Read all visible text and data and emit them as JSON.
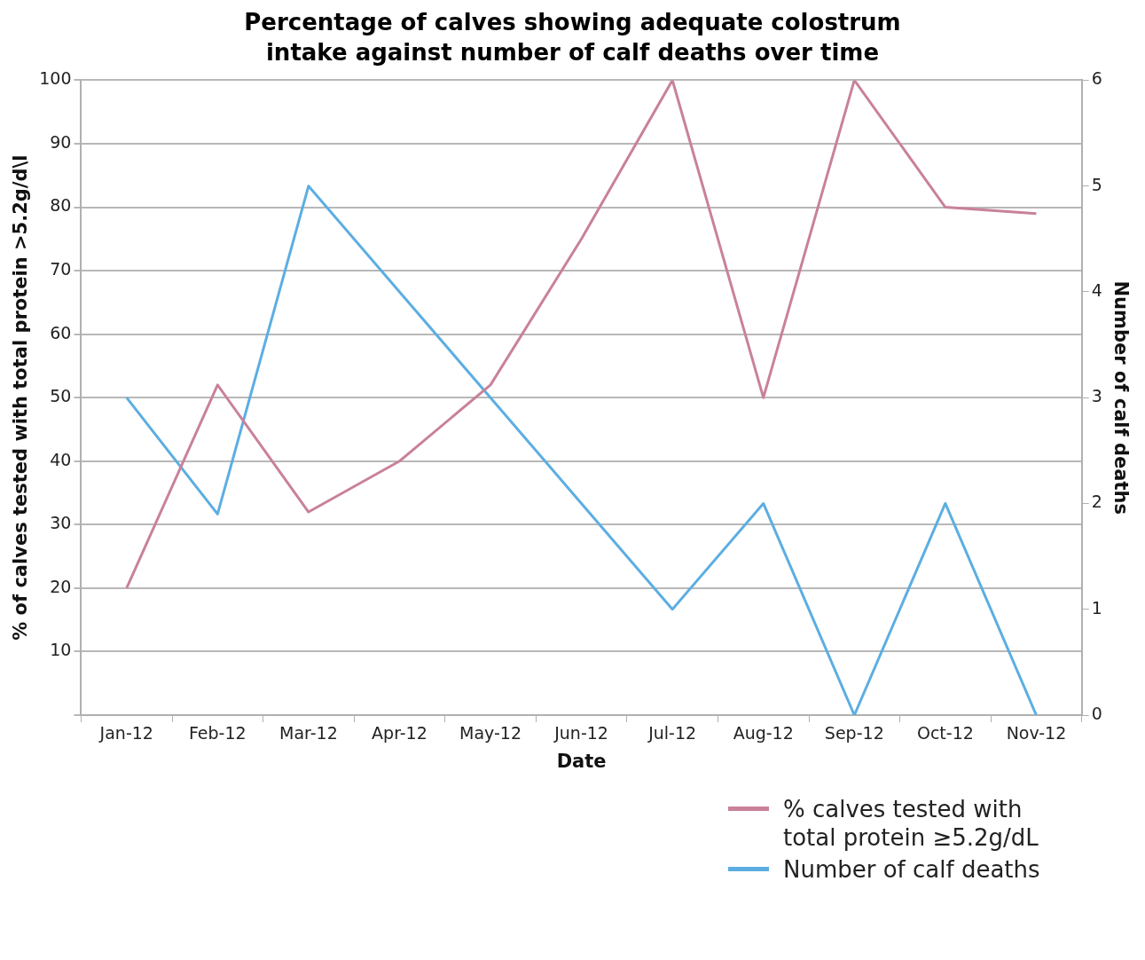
{
  "chart_data": {
    "type": "line",
    "title": "Percentage of calves showing adequate colostrum intake against number of calf deaths over time",
    "xlabel": "Date",
    "ylabel": "% of calves tested with total protein >5.2g/d\\l",
    "y2label": "Number of calf deaths",
    "categories": [
      "Jan-12",
      "Feb-12",
      "Mar-12",
      "Apr-12",
      "May-12",
      "Jun-12",
      "Jul-12",
      "Aug-12",
      "Sep-12",
      "Oct-12",
      "Nov-12"
    ],
    "series": [
      {
        "name": "% calves tested with total protein ≥5.2g/dL",
        "color": "#c9819b",
        "values": [
          20,
          52,
          32,
          40,
          52,
          75,
          100,
          50,
          100,
          80,
          79
        ]
      },
      {
        "name": "Number of calf deaths",
        "color": "#5caee2",
        "axis": "y2",
        "values": [
          3,
          1.9,
          5,
          4,
          3,
          2,
          1,
          2,
          0,
          2,
          0
        ]
      }
    ],
    "ylim": [
      0,
      100
    ],
    "yticks": [
      {
        "value": 0,
        "label": null
      },
      10,
      20,
      30,
      40,
      50,
      60,
      70,
      80,
      90,
      100
    ],
    "y2lim": [
      0,
      6
    ],
    "y2ticks": [
      0,
      1,
      2,
      3,
      4,
      5,
      6
    ],
    "grid": "y",
    "legend": "bottom right",
    "marker": "none",
    "line_style": "solid"
  }
}
